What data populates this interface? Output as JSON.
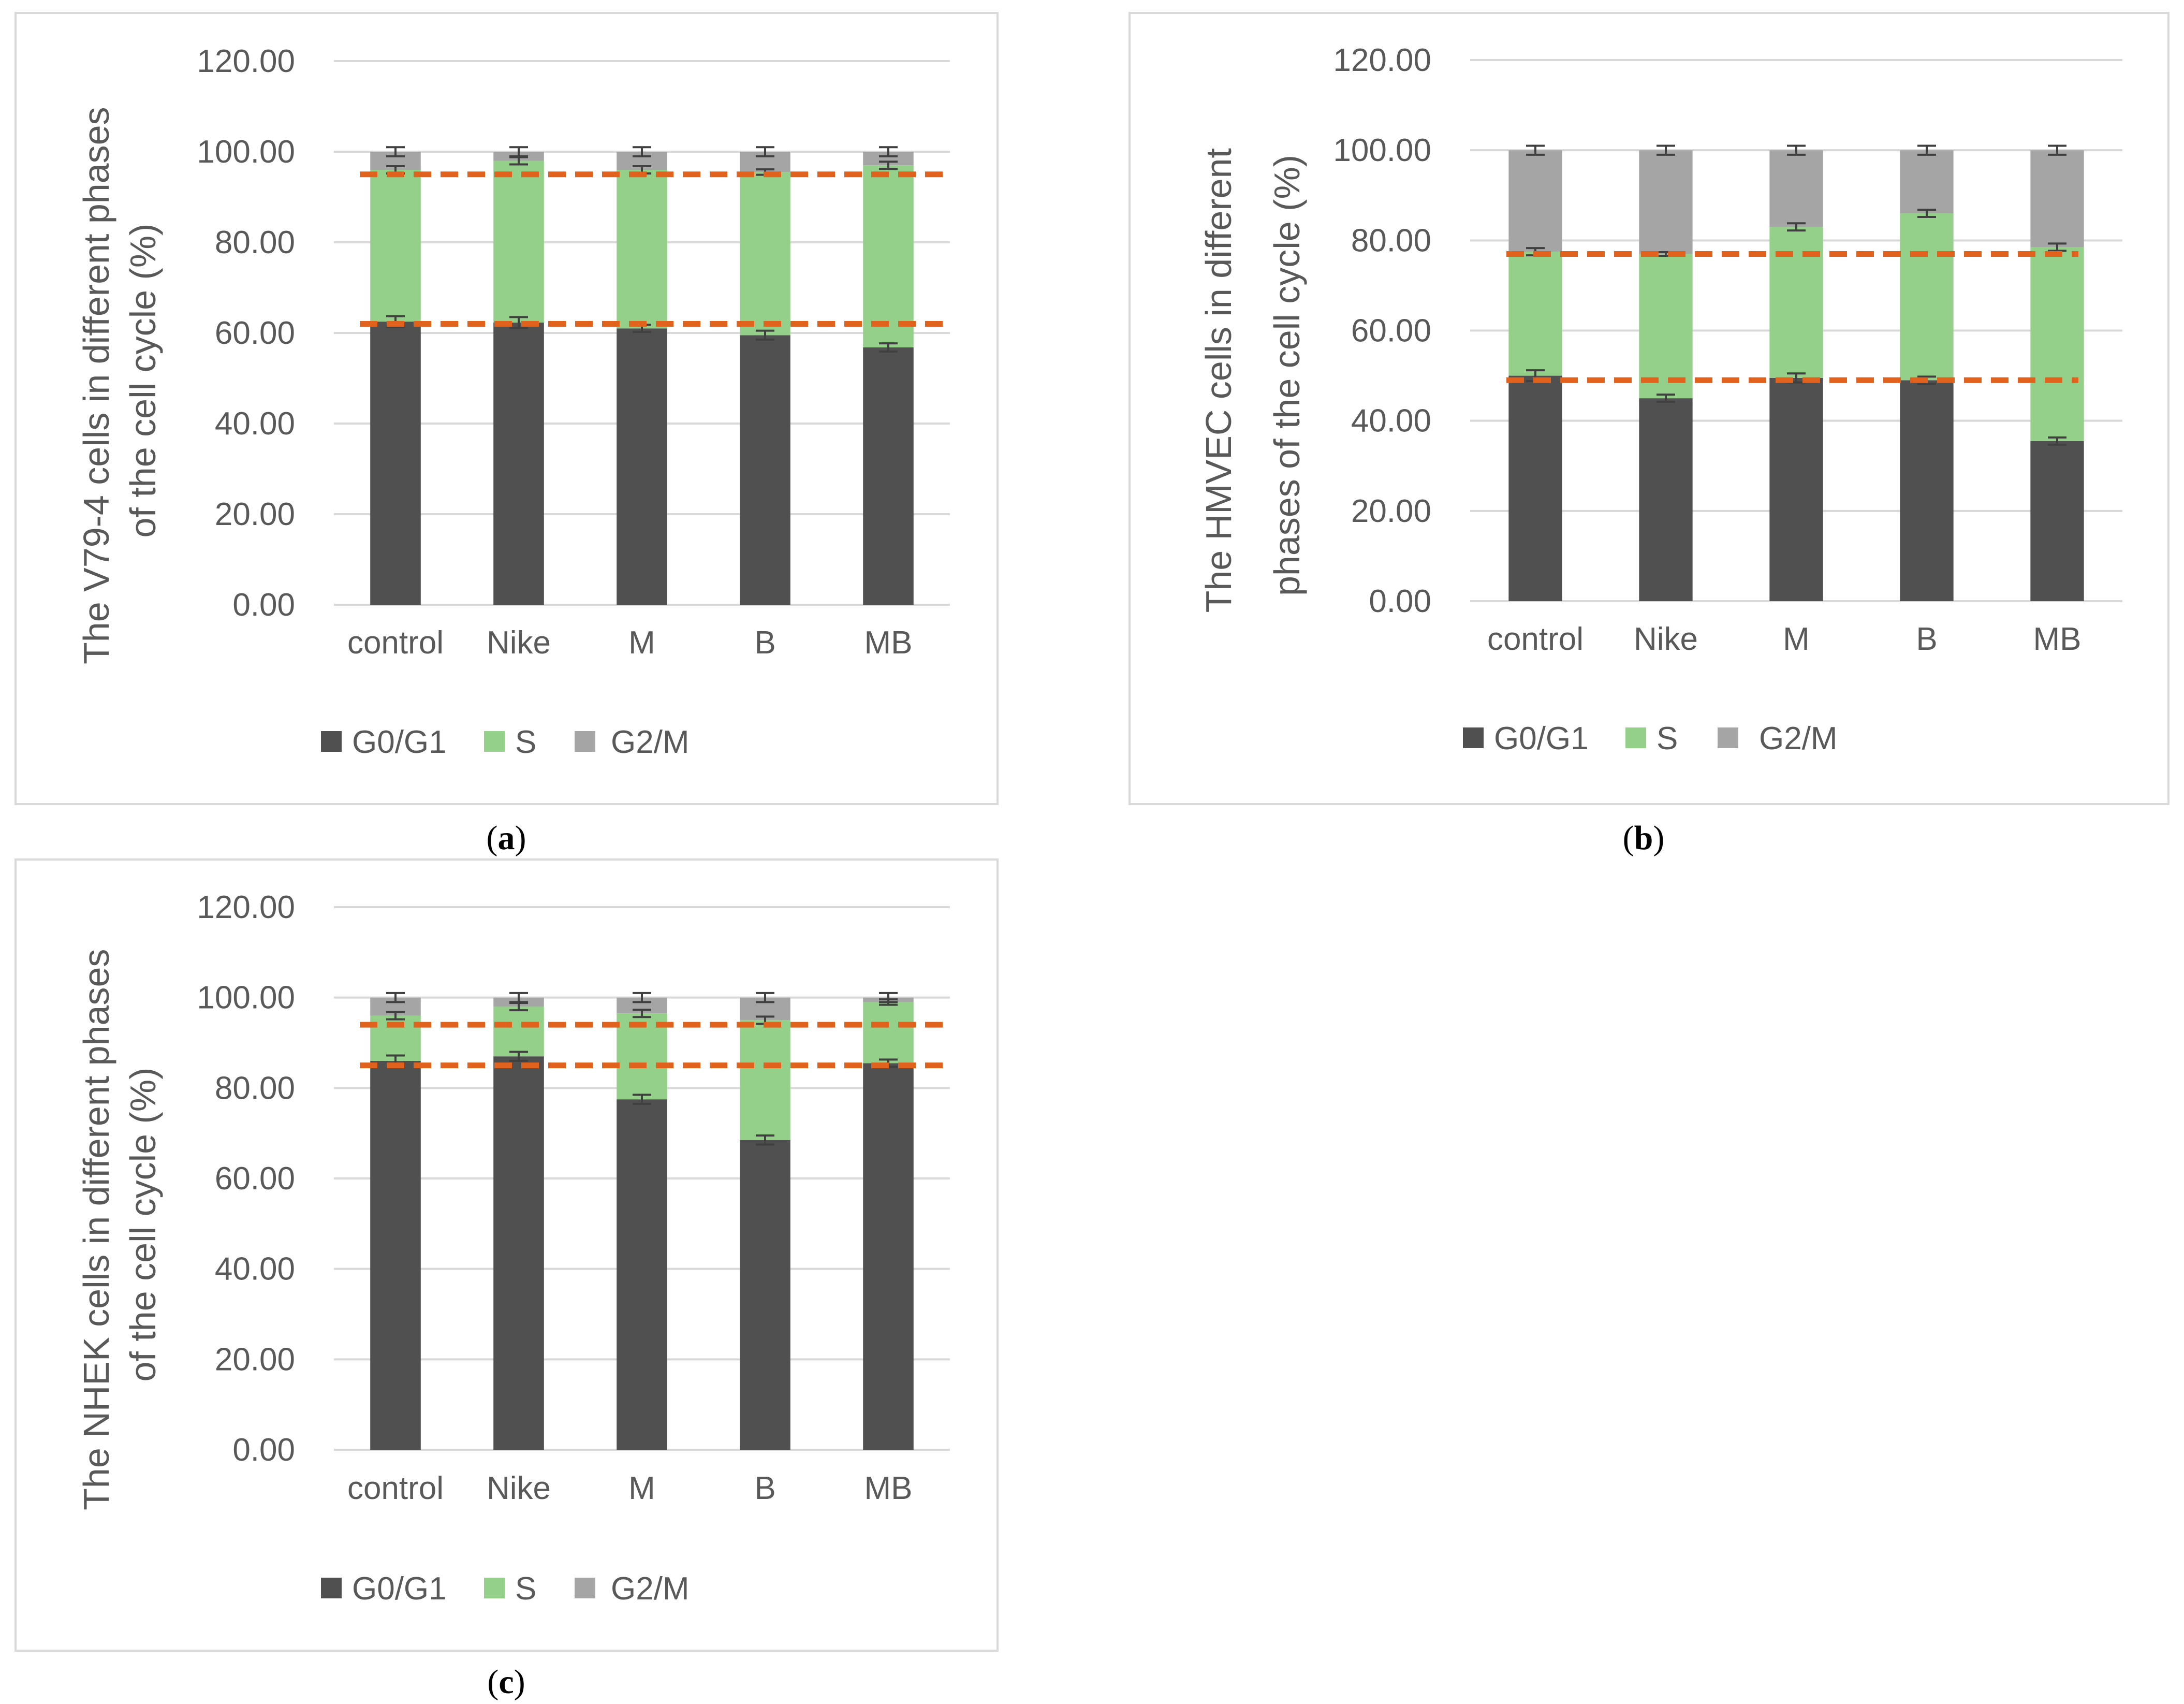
{
  "chart_data": [
    {
      "type": "bar",
      "stacked": true,
      "panel_label": "a",
      "ylabel_lines": [
        "The V79-4 cells in different phases",
        "of the cell cycle (%)"
      ],
      "categories": [
        "control",
        "Nike",
        "M",
        "B",
        "MB"
      ],
      "series": [
        {
          "name": "G0/G1",
          "color": "#505050",
          "values": [
            62.5,
            62.3,
            61.0,
            59.5,
            56.8
          ],
          "errors": [
            1.2,
            1.2,
            0.8,
            1.0,
            0.9
          ]
        },
        {
          "name": "S",
          "color": "#94d08a",
          "values": [
            33.5,
            35.7,
            35.0,
            36.0,
            40.2
          ],
          "errors": [
            0.8,
            0.8,
            0.8,
            0.6,
            0.8
          ]
        },
        {
          "name": "G2/M",
          "color": "#a5a5a5",
          "values": [
            4.0,
            2.0,
            4.0,
            4.5,
            3.0
          ],
          "errors": [
            1.0,
            1.0,
            1.0,
            1.0,
            1.0
          ]
        }
      ],
      "reference_lines": [
        95,
        62
      ],
      "reference_color": "#e0621d",
      "ylim": [
        0,
        120
      ],
      "yticks": [
        "0.00",
        "20.00",
        "40.00",
        "60.00",
        "80.00",
        "100.00",
        "120.00"
      ],
      "legend": [
        "G0/G1",
        "S",
        "G2/M"
      ],
      "legend_position": "bottom",
      "grid": true
    },
    {
      "type": "bar",
      "stacked": true,
      "panel_label": "b",
      "ylabel_lines": [
        "The HMVEC cells in different",
        "phases of the cell cycle (%)"
      ],
      "categories": [
        "control",
        "Nike",
        "M",
        "B",
        "MB"
      ],
      "series": [
        {
          "name": "G0/G1",
          "color": "#505050",
          "values": [
            50.0,
            45.0,
            49.5,
            49.0,
            35.5
          ],
          "errors": [
            1.2,
            0.8,
            1.0,
            0.8,
            0.8
          ]
        },
        {
          "name": "S",
          "color": "#94d08a",
          "values": [
            27.5,
            32.0,
            33.5,
            37.0,
            43.0
          ],
          "errors": [
            0.8,
            0.4,
            0.8,
            0.8,
            0.8
          ]
        },
        {
          "name": "G2/M",
          "color": "#a5a5a5",
          "values": [
            22.5,
            23.0,
            17.0,
            14.0,
            21.5
          ],
          "errors": [
            1.0,
            1.0,
            1.0,
            1.0,
            1.0
          ]
        }
      ],
      "reference_lines": [
        77,
        49
      ],
      "reference_color": "#e0621d",
      "ylim": [
        0,
        120
      ],
      "yticks": [
        "0.00",
        "20.00",
        "40.00",
        "60.00",
        "80.00",
        "100.00",
        "120.00"
      ],
      "legend": [
        "G0/G1",
        "S",
        "G2/M"
      ],
      "legend_position": "bottom",
      "grid": true
    },
    {
      "type": "bar",
      "stacked": true,
      "panel_label": "c",
      "ylabel_lines": [
        "The NHEK cells in different phases",
        "of the cell cycle (%)"
      ],
      "categories": [
        "control",
        "Nike",
        "M",
        "B",
        "MB"
      ],
      "series": [
        {
          "name": "G0/G1",
          "color": "#505050",
          "values": [
            86.0,
            87.0,
            77.5,
            68.5,
            85.5
          ],
          "errors": [
            1.2,
            1.0,
            1.0,
            1.0,
            0.8
          ]
        },
        {
          "name": "S",
          "color": "#94d08a",
          "values": [
            10.0,
            11.0,
            19.0,
            26.5,
            13.5
          ],
          "errors": [
            0.8,
            0.8,
            0.8,
            0.8,
            0.6
          ]
        },
        {
          "name": "G2/M",
          "color": "#a5a5a5",
          "values": [
            4.0,
            2.0,
            3.5,
            5.0,
            1.0
          ],
          "errors": [
            1.0,
            1.0,
            1.0,
            1.0,
            1.0
          ]
        }
      ],
      "reference_lines": [
        94,
        85
      ],
      "reference_color": "#e0621d",
      "ylim": [
        0,
        120
      ],
      "yticks": [
        "0.00",
        "20.00",
        "40.00",
        "60.00",
        "80.00",
        "100.00",
        "120.00"
      ],
      "legend": [
        "G0/G1",
        "S",
        "G2/M"
      ],
      "legend_position": "bottom",
      "grid": true
    }
  ]
}
